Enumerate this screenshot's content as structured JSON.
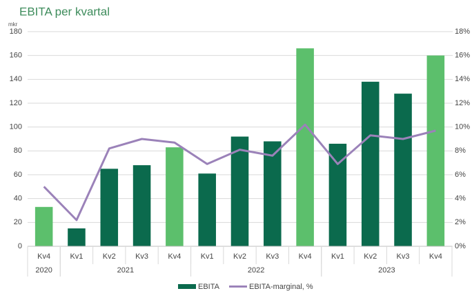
{
  "chart_data": {
    "type": "bar_line",
    "title": "EBITA per kvartal",
    "y_unit": "mkr",
    "categories": [
      "Kv4",
      "Kv1",
      "Kv2",
      "Kv3",
      "Kv4",
      "Kv1",
      "Kv2",
      "Kv3",
      "Kv4",
      "Kv1",
      "Kv2",
      "Kv3",
      "Kv4"
    ],
    "groups": [
      {
        "label": "2020",
        "span": 1
      },
      {
        "label": "2021",
        "span": 4
      },
      {
        "label": "2022",
        "span": 4
      },
      {
        "label": "2023",
        "span": 4
      }
    ],
    "series": [
      {
        "name": "EBITA",
        "type": "bar",
        "color": "#0b6a4d",
        "point_colors": [
          "#5cbf6c",
          "#0b6a4d",
          "#0b6a4d",
          "#0b6a4d",
          "#5cbf6c",
          "#0b6a4d",
          "#0b6a4d",
          "#0b6a4d",
          "#5cbf6c",
          "#0b6a4d",
          "#0b6a4d",
          "#0b6a4d",
          "#5cbf6c"
        ],
        "values": [
          33,
          15,
          65,
          68,
          83,
          61,
          92,
          88,
          166,
          86,
          138,
          128,
          160
        ]
      },
      {
        "name": "EBITA-marginal, %",
        "type": "line",
        "axis": "y2",
        "color": "#9b82b9",
        "values": [
          5.0,
          2.2,
          8.2,
          9.0,
          8.7,
          6.9,
          8.1,
          7.6,
          10.2,
          6.9,
          9.3,
          9.0,
          9.7
        ]
      }
    ],
    "ylim": [
      0,
      180
    ],
    "yticks": [
      0,
      20,
      40,
      60,
      80,
      100,
      120,
      140,
      160,
      180
    ],
    "y2lim": [
      0,
      18
    ],
    "y2ticks": [
      {
        "value": 0,
        "label": "0%"
      },
      {
        "value": 2,
        "label": "2%"
      },
      {
        "value": 4,
        "label": "4%"
      },
      {
        "value": 6,
        "label": "6%"
      },
      {
        "value": 8,
        "label": "8%"
      },
      {
        "value": 10,
        "label": "10%"
      },
      {
        "value": 12,
        "label": "12%"
      },
      {
        "value": 14,
        "label": "14%"
      },
      {
        "value": 16,
        "label": "16%"
      },
      {
        "value": 18,
        "label": "18%"
      }
    ],
    "grid": true,
    "legend": "bottom"
  }
}
